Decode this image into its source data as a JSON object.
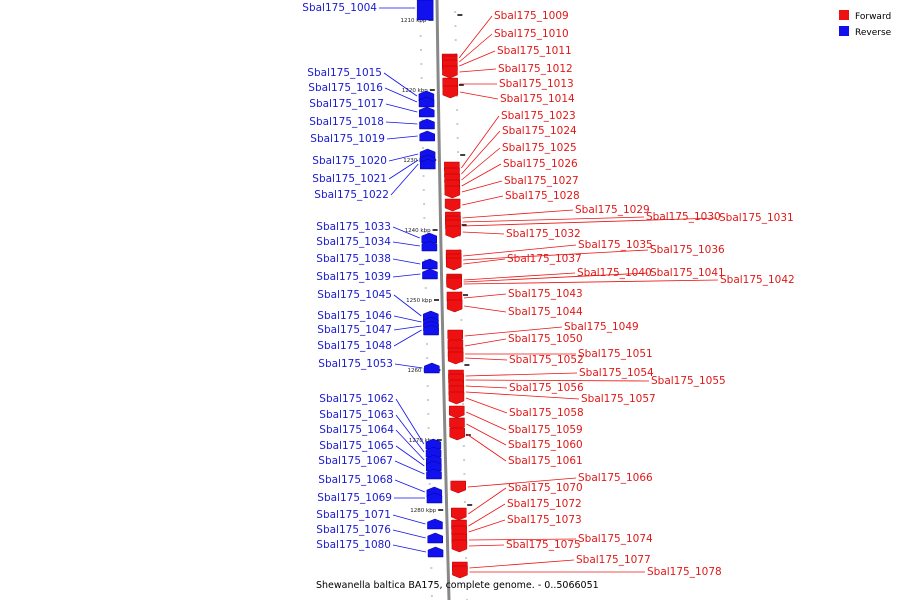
{
  "caption": "Shewanella baltica BA175, complete genome. - 0..5066051",
  "legend": [
    {
      "label": "Forward",
      "color": "#ee1111"
    },
    {
      "label": "Reverse",
      "color": "#1111ee"
    }
  ],
  "ticks": [
    "1210 kbp",
    "1220 kbp",
    "1230 kbp",
    "1240 kbp",
    "1250 kbp",
    "1260 kbp",
    "1270 kbp",
    "1280 kbp"
  ],
  "forward_genes": [
    "Sbal175_1009",
    "Sbal175_1010",
    "Sbal175_1011",
    "Sbal175_1012",
    "Sbal175_1013",
    "Sbal175_1014",
    "Sbal175_1023",
    "Sbal175_1024",
    "Sbal175_1025",
    "Sbal175_1026",
    "Sbal175_1027",
    "Sbal175_1028",
    "Sbal175_1029",
    "Sbal175_1030",
    "Sbal175_1031",
    "Sbal175_1032",
    "Sbal175_1035",
    "Sbal175_1036",
    "Sbal175_1037",
    "Sbal175_1040",
    "Sbal175_1041",
    "Sbal175_1042",
    "Sbal175_1043",
    "Sbal175_1044",
    "Sbal175_1049",
    "Sbal175_1050",
    "Sbal175_1051",
    "Sbal175_1052",
    "Sbal175_1054",
    "Sbal175_1055",
    "Sbal175_1056",
    "Sbal175_1057",
    "Sbal175_1058",
    "Sbal175_1059",
    "Sbal175_1060",
    "Sbal175_1061",
    "Sbal175_1066",
    "Sbal175_1070",
    "Sbal175_1072",
    "Sbal175_1073",
    "Sbal175_1074",
    "Sbal175_1075",
    "Sbal175_1077",
    "Sbal175_1078"
  ],
  "reverse_genes": [
    "Sbal175_1004",
    "Sbal175_1015",
    "Sbal175_1016",
    "Sbal175_1017",
    "Sbal175_1018",
    "Sbal175_1019",
    "Sbal175_1020",
    "Sbal175_1021",
    "Sbal175_1022",
    "Sbal175_1033",
    "Sbal175_1034",
    "Sbal175_1038",
    "Sbal175_1039",
    "Sbal175_1045",
    "Sbal175_1046",
    "Sbal175_1047",
    "Sbal175_1048",
    "Sbal175_1053",
    "Sbal175_1062",
    "Sbal175_1063",
    "Sbal175_1064",
    "Sbal175_1065",
    "Sbal175_1067",
    "Sbal175_1068",
    "Sbal175_1069",
    "Sbal175_1071",
    "Sbal175_1076",
    "Sbal175_1080"
  ]
}
